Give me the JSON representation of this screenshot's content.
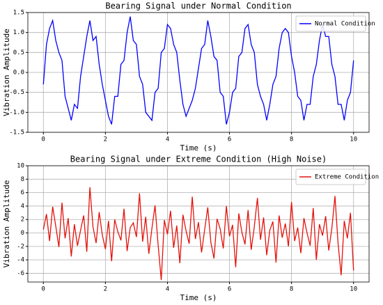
{
  "chart_data": [
    {
      "type": "line",
      "title": "Bearing Signal under Normal Condition",
      "x_label": "Time (s)",
      "y_label": "Vibration Amplitude",
      "x": [
        0,
        0.1,
        0.2,
        0.3,
        0.4,
        0.5,
        0.6,
        0.7,
        0.8,
        0.9,
        1,
        1.1,
        1.2,
        1.3,
        1.4,
        1.5,
        1.6,
        1.7,
        1.8,
        1.9,
        2,
        2.1,
        2.2,
        2.3,
        2.4,
        2.5,
        2.6,
        2.7,
        2.8,
        2.9,
        3,
        3.1,
        3.2,
        3.3,
        3.4,
        3.5,
        3.6,
        3.7,
        3.8,
        3.9,
        4,
        4.1,
        4.2,
        4.3,
        4.4,
        4.5,
        4.6,
        4.7,
        4.8,
        4.9,
        5,
        5.1,
        5.2,
        5.3,
        5.4,
        5.5,
        5.6,
        5.7,
        5.8,
        5.9,
        6,
        6.1,
        6.2,
        6.3,
        6.4,
        6.5,
        6.6,
        6.7,
        6.8,
        6.9,
        7,
        7.1,
        7.2,
        7.3,
        7.4,
        7.5,
        7.6,
        7.7,
        7.8,
        7.9,
        8,
        8.1,
        8.2,
        8.3,
        8.4,
        8.5,
        8.6,
        8.7,
        8.8,
        8.9,
        9,
        9.1,
        9.2,
        9.3,
        9.4,
        9.5,
        9.6,
        9.7,
        9.8,
        9.9,
        10
      ],
      "series": [
        {
          "name": "Normal Condition",
          "color": "#0000ff",
          "values": [
            -0.3,
            0.7,
            1.1,
            1.3,
            0.8,
            0.5,
            0.3,
            -0.6,
            -0.9,
            -1.2,
            -0.8,
            -0.9,
            -0.1,
            0.4,
            0.9,
            1.3,
            0.8,
            0.9,
            0.2,
            -0.3,
            -0.7,
            -1.1,
            -1.3,
            -0.6,
            -0.6,
            0.2,
            0.3,
            1.0,
            1.4,
            0.8,
            0.7,
            -0.1,
            -0.3,
            -1.0,
            -1.1,
            -1.2,
            -0.5,
            -0.4,
            0.5,
            0.6,
            1.2,
            1.1,
            0.7,
            0.5,
            -0.2,
            -0.8,
            -1.1,
            -0.9,
            -0.7,
            -0.4,
            0.1,
            0.6,
            0.7,
            1.3,
            0.9,
            0.4,
            0.3,
            -0.5,
            -0.6,
            -1.3,
            -1.0,
            -0.5,
            -0.4,
            0.4,
            0.5,
            1.1,
            1.2,
            0.7,
            0.5,
            -0.3,
            -0.6,
            -0.8,
            -1.2,
            -0.8,
            -0.3,
            -0.1,
            0.6,
            1.0,
            1.1,
            1.0,
            0.4,
            0.0,
            -0.6,
            -0.7,
            -1.2,
            -0.8,
            -0.8,
            -0.1,
            0.2,
            0.8,
            1.2,
            0.9,
            0.9,
            0.2,
            -0.1,
            -0.8,
            -0.8,
            -1.2,
            -0.7,
            -0.5,
            0.3
          ]
        }
      ],
      "xlim": [
        -0.5,
        10.5
      ],
      "xticks": [
        0,
        2,
        4,
        6,
        8,
        10
      ],
      "ylim": [
        -1.5,
        1.5
      ],
      "yticks": [
        {
          "value": -1.5,
          "label": "-1.5"
        },
        {
          "value": -1,
          "label": "-1.0"
        },
        -0.5,
        {
          "value": 0,
          "label": "0.0"
        },
        0.5,
        {
          "value": 1,
          "label": "1.0"
        },
        1.5
      ],
      "grid": true,
      "legend": "upper right"
    },
    {
      "type": "line",
      "title": "Bearing Signal under Extreme Condition (High Noise)",
      "x_label": "Time (s)",
      "y_label": "Vibration Amplitude",
      "x": [
        0,
        0.1,
        0.2,
        0.3,
        0.4,
        0.5,
        0.6,
        0.7,
        0.8,
        0.9,
        1,
        1.1,
        1.2,
        1.3,
        1.4,
        1.5,
        1.6,
        1.7,
        1.8,
        1.9,
        2,
        2.1,
        2.2,
        2.3,
        2.4,
        2.5,
        2.6,
        2.7,
        2.8,
        2.9,
        3,
        3.1,
        3.2,
        3.3,
        3.4,
        3.5,
        3.6,
        3.7,
        3.8,
        3.9,
        4,
        4.1,
        4.2,
        4.3,
        4.4,
        4.5,
        4.6,
        4.7,
        4.8,
        4.9,
        5,
        5.1,
        5.2,
        5.3,
        5.4,
        5.5,
        5.6,
        5.7,
        5.8,
        5.9,
        6,
        6.1,
        6.2,
        6.3,
        6.4,
        6.5,
        6.6,
        6.7,
        6.8,
        6.9,
        7,
        7.1,
        7.2,
        7.3,
        7.4,
        7.5,
        7.6,
        7.7,
        7.8,
        7.9,
        8,
        8.1,
        8.2,
        8.3,
        8.4,
        8.5,
        8.6,
        8.7,
        8.8,
        8.9,
        9,
        9.1,
        9.2,
        9.3,
        9.4,
        9.5,
        9.6,
        9.7,
        9.8,
        9.9,
        10
      ],
      "series": [
        {
          "name": "Extreme Condition",
          "color": "#e3120b",
          "values": [
            0.5,
            2.8,
            -1.2,
            3.9,
            1.0,
            -2.1,
            4.5,
            -0.8,
            2.2,
            -3.5,
            1.3,
            -1.9,
            0.4,
            2.6,
            -2.8,
            6.8,
            0.9,
            -1.5,
            3.1,
            -0.3,
            -2.4,
            1.8,
            -4.2,
            2.0,
            0.2,
            -1.1,
            3.6,
            -2.7,
            0.8,
            1.5,
            -0.6,
            5.9,
            -1.3,
            2.4,
            -3.1,
            0.7,
            4.1,
            -1.8,
            -7.0,
            1.9,
            -0.2,
            3.3,
            -2.2,
            1.1,
            -4.5,
            2.7,
            0.3,
            -1.6,
            5.4,
            -0.9,
            1.6,
            -2.9,
            0.5,
            3.8,
            -1.4,
            -3.8,
            2.1,
            0.6,
            -2.3,
            4.0,
            -0.5,
            1.2,
            -5.1,
            2.9,
            0.1,
            -1.7,
            3.4,
            -2.5,
            0.9,
            5.2,
            -1.0,
            2.3,
            -3.3,
            0.4,
            1.7,
            -4.4,
            2.6,
            -0.7,
            1.4,
            -2.0,
            4.6,
            -1.2,
            0.8,
            -3.0,
            2.2,
            0.0,
            -1.9,
            3.7,
            -4.0,
            1.3,
            -0.4,
            2.5,
            -2.6,
            0.7,
            5.5,
            -1.5,
            -6.3,
            1.8,
            -0.8,
            3.0,
            -5.6
          ]
        }
      ],
      "xlim": [
        -0.5,
        10.5
      ],
      "xticks": [
        0,
        2,
        4,
        6,
        8,
        10
      ],
      "ylim": [
        -7.3,
        10
      ],
      "yticks": [
        -6,
        -4,
        -2,
        0,
        2,
        4,
        6,
        8,
        10
      ],
      "grid": true,
      "legend": "upper right"
    }
  ]
}
